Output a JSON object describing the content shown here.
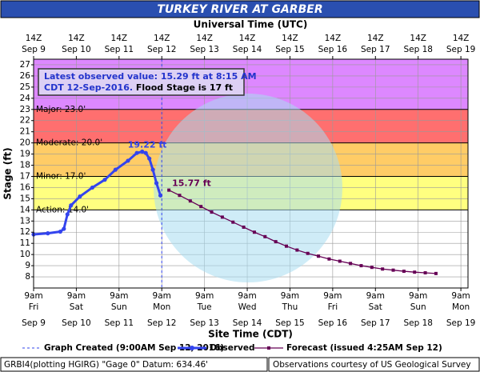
{
  "chart_data": {
    "type": "hydrograph",
    "title": "TURKEY RIVER AT GARBER",
    "x2label": "Universal Time (UTC)",
    "xlabel": "Site Time (CDT)",
    "ylabel": "Stage (ft)",
    "xlim": [
      "2016-09-09T09:00",
      "2016-09-19T13:00"
    ],
    "ylim": [
      7,
      27.5
    ],
    "yticks": [
      8,
      9,
      10,
      11,
      12,
      13,
      14,
      15,
      16,
      17,
      18,
      19,
      20,
      21,
      22,
      23,
      24,
      25,
      26,
      27
    ],
    "grid": true,
    "xticks": [
      {
        "value": "2016-09-09T09:00",
        "label": [
          "9am",
          "Fri",
          "Sep 9"
        ]
      },
      {
        "value": "2016-09-10T09:00",
        "label": [
          "9am",
          "Sat",
          "Sep 10"
        ]
      },
      {
        "value": "2016-09-11T09:00",
        "label": [
          "9am",
          "Sun",
          "Sep 11"
        ]
      },
      {
        "value": "2016-09-12T09:00",
        "label": [
          "9am",
          "Mon",
          "Sep 12"
        ]
      },
      {
        "value": "2016-09-13T09:00",
        "label": [
          "9am",
          "Tue",
          "Sep 13"
        ]
      },
      {
        "value": "2016-09-14T09:00",
        "label": [
          "9am",
          "Wed",
          "Sep 14"
        ]
      },
      {
        "value": "2016-09-15T09:00",
        "label": [
          "9am",
          "Thu",
          "Sep 15"
        ]
      },
      {
        "value": "2016-09-16T09:00",
        "label": [
          "9am",
          "Fri",
          "Sep 16"
        ]
      },
      {
        "value": "2016-09-17T09:00",
        "label": [
          "9am",
          "Sat",
          "Sep 17"
        ]
      },
      {
        "value": "2016-09-18T09:00",
        "label": [
          "9am",
          "Sun",
          "Sep 18"
        ]
      },
      {
        "value": "2016-09-19T09:00",
        "label": [
          "9am",
          "Mon",
          "Sep 19"
        ]
      }
    ],
    "x2ticks": [
      {
        "value": "2016-09-09T09:00",
        "label": [
          "14Z",
          "Sep 9"
        ]
      },
      {
        "value": "2016-09-10T09:00",
        "label": [
          "14Z",
          "Sep 10"
        ]
      },
      {
        "value": "2016-09-11T09:00",
        "label": [
          "14Z",
          "Sep 11"
        ]
      },
      {
        "value": "2016-09-12T09:00",
        "label": [
          "14Z",
          "Sep 12"
        ]
      },
      {
        "value": "2016-09-13T09:00",
        "label": [
          "14Z",
          "Sep 13"
        ]
      },
      {
        "value": "2016-09-14T09:00",
        "label": [
          "14Z",
          "Sep 14"
        ]
      },
      {
        "value": "2016-09-15T09:00",
        "label": [
          "14Z",
          "Sep 15"
        ]
      },
      {
        "value": "2016-09-16T09:00",
        "label": [
          "14Z",
          "Sep 16"
        ]
      },
      {
        "value": "2016-09-17T09:00",
        "label": [
          "14Z",
          "Sep 17"
        ]
      },
      {
        "value": "2016-09-18T09:00",
        "label": [
          "14Z",
          "Sep 18"
        ]
      },
      {
        "value": "2016-09-19T09:00",
        "label": [
          "14Z",
          "Sep 19"
        ]
      }
    ],
    "flood_categories": [
      {
        "label": "Action: 14.0'",
        "value": 14,
        "color": "#ffff80"
      },
      {
        "label": "Minor: 17.0'",
        "value": 17,
        "color": "#ffcc66"
      },
      {
        "label": "Moderate: 20.0'",
        "value": 20,
        "color": "#ff6f6f"
      },
      {
        "label": "Major: 23.0'",
        "value": 23,
        "color": "#dd88ff"
      }
    ],
    "graph_created": {
      "x": "2016-09-12T09:00",
      "label": "Graph Created (9:00AM Sep 12, 2016)"
    },
    "series": [
      {
        "name": "Observed",
        "color": "#3344ee",
        "x": [
          "2016-09-09T09:00",
          "2016-09-09T17:00",
          "2016-09-10T00:00",
          "2016-09-10T02:00",
          "2016-09-10T04:00",
          "2016-09-10T06:00",
          "2016-09-10T11:00",
          "2016-09-10T18:00",
          "2016-09-11T01:00",
          "2016-09-11T07:00",
          "2016-09-11T14:00",
          "2016-09-11T19:00",
          "2016-09-11T22:00",
          "2016-09-12T00:00",
          "2016-09-12T02:00",
          "2016-09-12T04:00",
          "2016-09-12T06:00",
          "2016-09-12T08:15"
        ],
        "values": [
          11.8,
          11.9,
          12.05,
          12.3,
          13.6,
          14.4,
          15.2,
          16.0,
          16.7,
          17.6,
          18.4,
          19.1,
          19.22,
          19.1,
          18.6,
          17.6,
          16.4,
          15.29
        ],
        "value_labels": [
          null,
          null,
          null,
          null,
          null,
          null,
          null,
          null,
          null,
          null,
          null,
          null,
          "19.22 ft",
          null,
          null,
          null,
          null,
          null
        ]
      },
      {
        "name": "Forecast (issued 4:25AM Sep 12)",
        "color": "#660055",
        "x": [
          "2016-09-12T13:00",
          "2016-09-12T19:00",
          "2016-09-13T01:00",
          "2016-09-13T07:00",
          "2016-09-13T13:00",
          "2016-09-13T19:00",
          "2016-09-14T01:00",
          "2016-09-14T07:00",
          "2016-09-14T13:00",
          "2016-09-14T19:00",
          "2016-09-15T01:00",
          "2016-09-15T07:00",
          "2016-09-15T13:00",
          "2016-09-15T19:00",
          "2016-09-16T01:00",
          "2016-09-16T07:00",
          "2016-09-16T13:00",
          "2016-09-16T19:00",
          "2016-09-17T01:00",
          "2016-09-17T07:00",
          "2016-09-17T13:00",
          "2016-09-17T19:00",
          "2016-09-18T01:00",
          "2016-09-18T07:00",
          "2016-09-18T13:00",
          "2016-09-18T19:00"
        ],
        "values": [
          15.77,
          15.3,
          14.8,
          14.3,
          13.8,
          13.35,
          12.9,
          12.45,
          12.0,
          11.6,
          11.15,
          10.75,
          10.4,
          10.1,
          9.85,
          9.6,
          9.4,
          9.2,
          9.0,
          8.85,
          8.7,
          8.6,
          8.5,
          8.42,
          8.36,
          8.3
        ],
        "value_labels": [
          "15.77 ft",
          null,
          null,
          null,
          null,
          null,
          null,
          null,
          null,
          null,
          null,
          null,
          null,
          null,
          null,
          null,
          null,
          null,
          null,
          null,
          null,
          null,
          null,
          null,
          null,
          null
        ]
      }
    ],
    "info_box": [
      "Latest observed value: 15.29 ft at 8:15 AM",
      "CDT 12-Sep-2016.",
      " Flood Stage is 17 ft"
    ],
    "footer": [
      "GRBI4(plotting HGIRG) \"Gage 0\" Datum: 634.46'",
      "Observations courtesy of US Geological Survey"
    ]
  }
}
